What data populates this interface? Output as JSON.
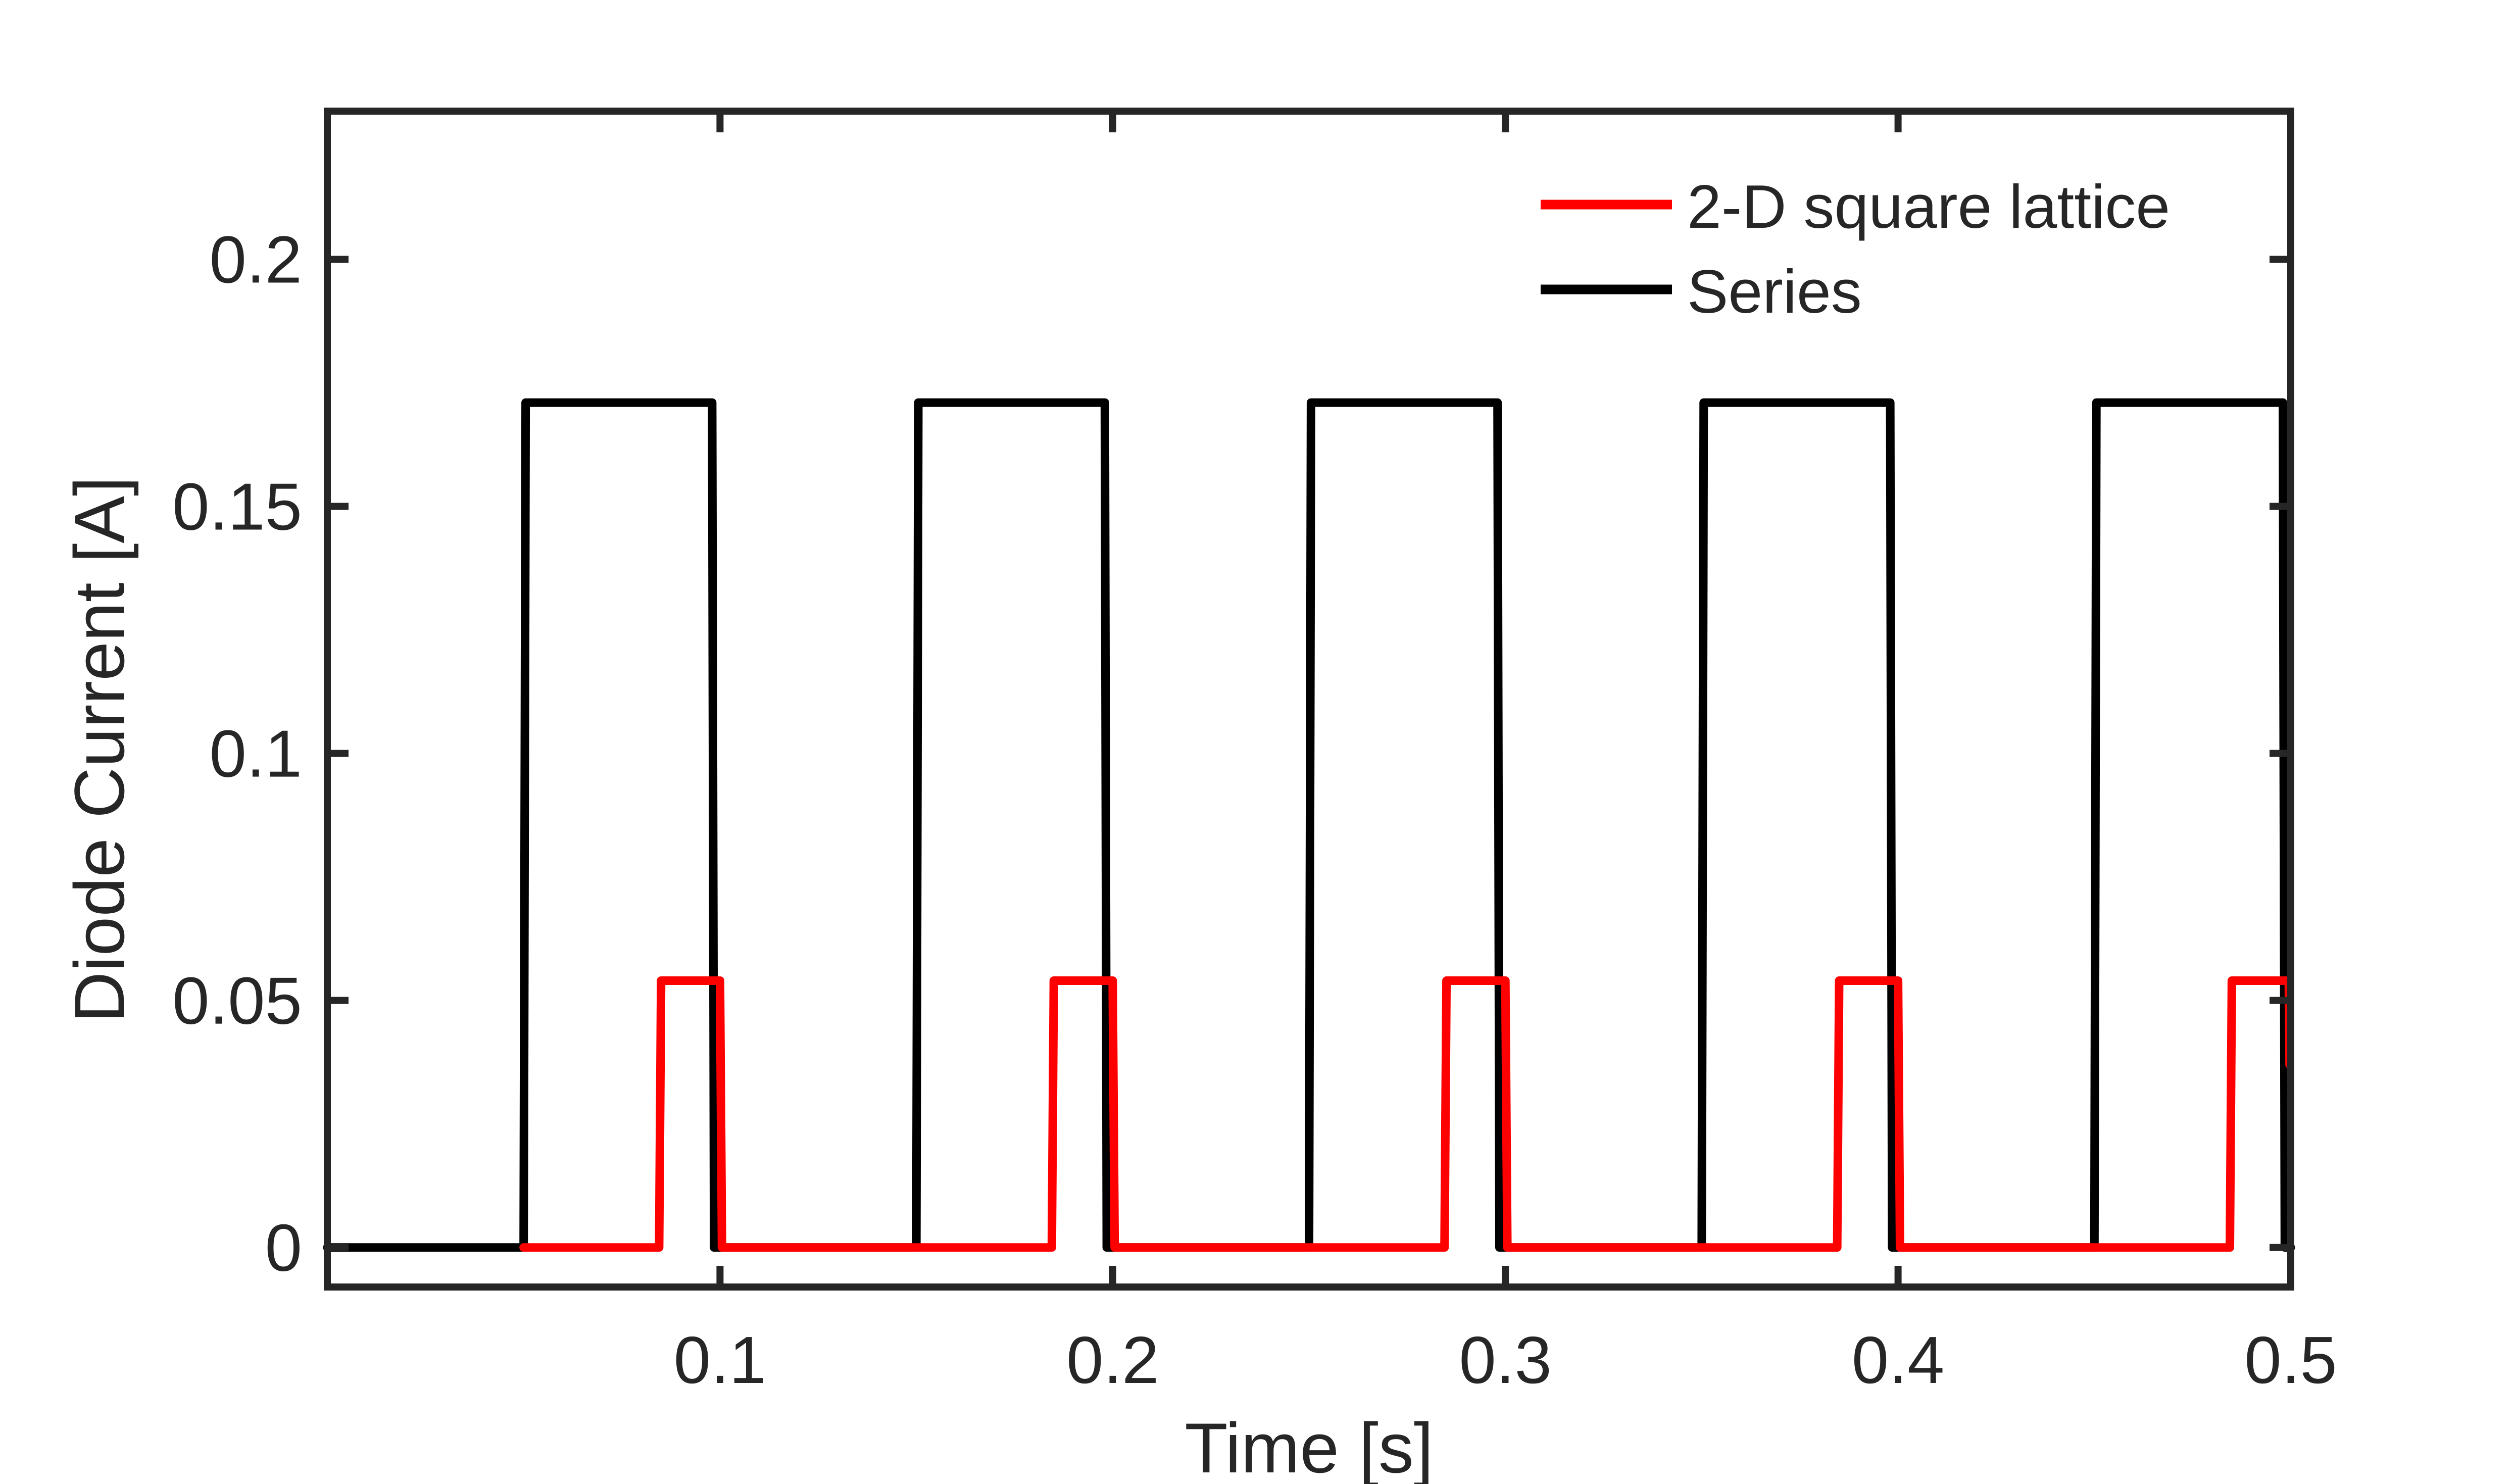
{
  "chart_data": {
    "type": "line",
    "title": "",
    "xlabel": "Time [s]",
    "ylabel": "Diode Current [A]",
    "xlim": [
      0,
      0.5
    ],
    "ylim": [
      -0.008,
      0.23
    ],
    "xticks": [
      0.1,
      0.2,
      0.3,
      0.4,
      0.5
    ],
    "xtick_labels": [
      "0.1",
      "0.2",
      "0.3",
      "0.4",
      "0.5"
    ],
    "yticks": [
      0,
      0.05,
      0.1,
      0.15,
      0.2
    ],
    "ytick_labels": [
      "0",
      "0.05",
      "0.1",
      "0.15",
      "0.2"
    ],
    "grid": false,
    "legend_position": "top-right",
    "series": [
      {
        "name": "Series",
        "color": "#000000",
        "x": [
          0,
          0.05,
          0.0505,
          0.098,
          0.0985,
          0.15,
          0.1505,
          0.198,
          0.1985,
          0.25,
          0.2505,
          0.298,
          0.2985,
          0.35,
          0.3505,
          0.398,
          0.3985,
          0.45,
          0.4505,
          0.498,
          0.4985,
          0.5
        ],
        "y": [
          0,
          0,
          0.171,
          0.171,
          0,
          0,
          0.171,
          0.171,
          0,
          0,
          0.171,
          0.171,
          0,
          0,
          0.171,
          0.171,
          0,
          0,
          0.171,
          0.171,
          0,
          0
        ]
      },
      {
        "name": "2-D square lattice",
        "color": "#ff0000",
        "x": [
          0.05,
          0.0845,
          0.085,
          0.1,
          0.1005,
          0.15,
          0.1845,
          0.185,
          0.2,
          0.2005,
          0.25,
          0.2845,
          0.285,
          0.3,
          0.3005,
          0.35,
          0.3845,
          0.385,
          0.4,
          0.4005,
          0.45,
          0.4845,
          0.485,
          0.4995,
          0.4997
        ],
        "y": [
          0,
          0,
          0.054,
          0.054,
          0,
          0,
          0,
          0.054,
          0.054,
          0,
          0,
          0,
          0.054,
          0.054,
          0,
          0,
          0,
          0.054,
          0.054,
          0,
          0,
          0,
          0.054,
          0.054,
          0.037
        ]
      }
    ]
  }
}
